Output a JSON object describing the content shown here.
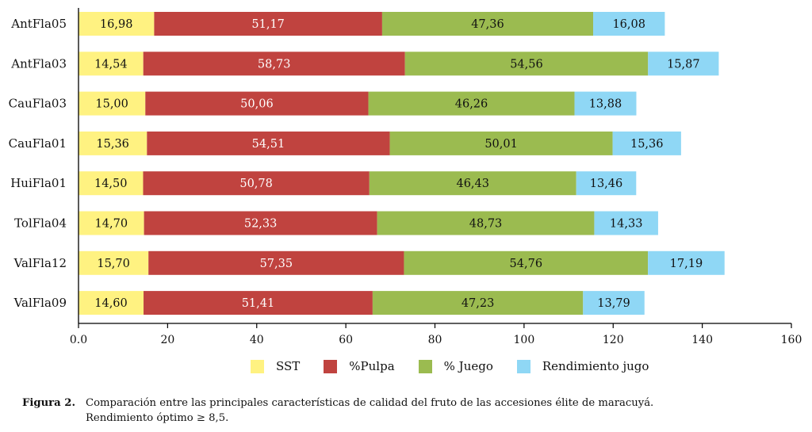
{
  "chart_data": {
    "type": "bar",
    "orientation": "horizontal",
    "stacked": true,
    "categories": [
      "AntFla05",
      "AntFla03",
      "CauFla03",
      "CauFla01",
      "HuiFla01",
      "TolFla04",
      "ValFla12",
      "ValFla09"
    ],
    "series": [
      {
        "name": "SST",
        "color": "#fff281",
        "label_color": "#111111",
        "values": [
          16.98,
          14.54,
          15.0,
          15.36,
          14.5,
          14.7,
          15.7,
          14.6
        ],
        "labels": [
          "16,98",
          "14,54",
          "15,00",
          "15,36",
          "14,50",
          "14,70",
          "15,70",
          "14,60"
        ]
      },
      {
        "name": "%Pulpa",
        "color": "#c0433f",
        "label_color": "#ffffff",
        "values": [
          51.17,
          58.73,
          50.06,
          54.51,
          50.78,
          52.33,
          57.35,
          51.41
        ],
        "labels": [
          "51,17",
          "58,73",
          "50,06",
          "54,51",
          "50,78",
          "52,33",
          "57,35",
          "51,41"
        ]
      },
      {
        "name": "% Juego",
        "color": "#9bbb50",
        "label_color": "#111111",
        "values": [
          47.36,
          54.56,
          46.26,
          50.01,
          46.43,
          48.73,
          54.76,
          47.23
        ],
        "labels": [
          "47,36",
          "54,56",
          "46,26",
          "50,01",
          "46,43",
          "48,73",
          "54,76",
          "47,23"
        ]
      },
      {
        "name": "Rendimiento jugo",
        "color": "#8fd7f5",
        "label_color": "#111111",
        "values": [
          16.08,
          15.87,
          13.88,
          15.36,
          13.46,
          14.33,
          17.19,
          13.79
        ],
        "labels": [
          "16,08",
          "15,87",
          "13,88",
          "15,36",
          "13,46",
          "14,33",
          "17,19",
          "13,79"
        ]
      }
    ],
    "xlim": [
      0,
      160
    ],
    "xticks": [
      0,
      20,
      40,
      60,
      80,
      100,
      120,
      140,
      160
    ],
    "xtick_labels": [
      "0.0",
      "20",
      "40",
      "60",
      "80",
      "100",
      "120",
      "140",
      "160"
    ],
    "xlabel": "",
    "ylabel": "",
    "grid": false,
    "legend_position": "bottom"
  },
  "caption": {
    "figure_label": "Figura 2.",
    "line1": "Comparación entre las principales características de calidad del fruto de las accesiones élite de maracuyá.",
    "line2": "Rendimiento óptimo ≥ 8,5."
  }
}
